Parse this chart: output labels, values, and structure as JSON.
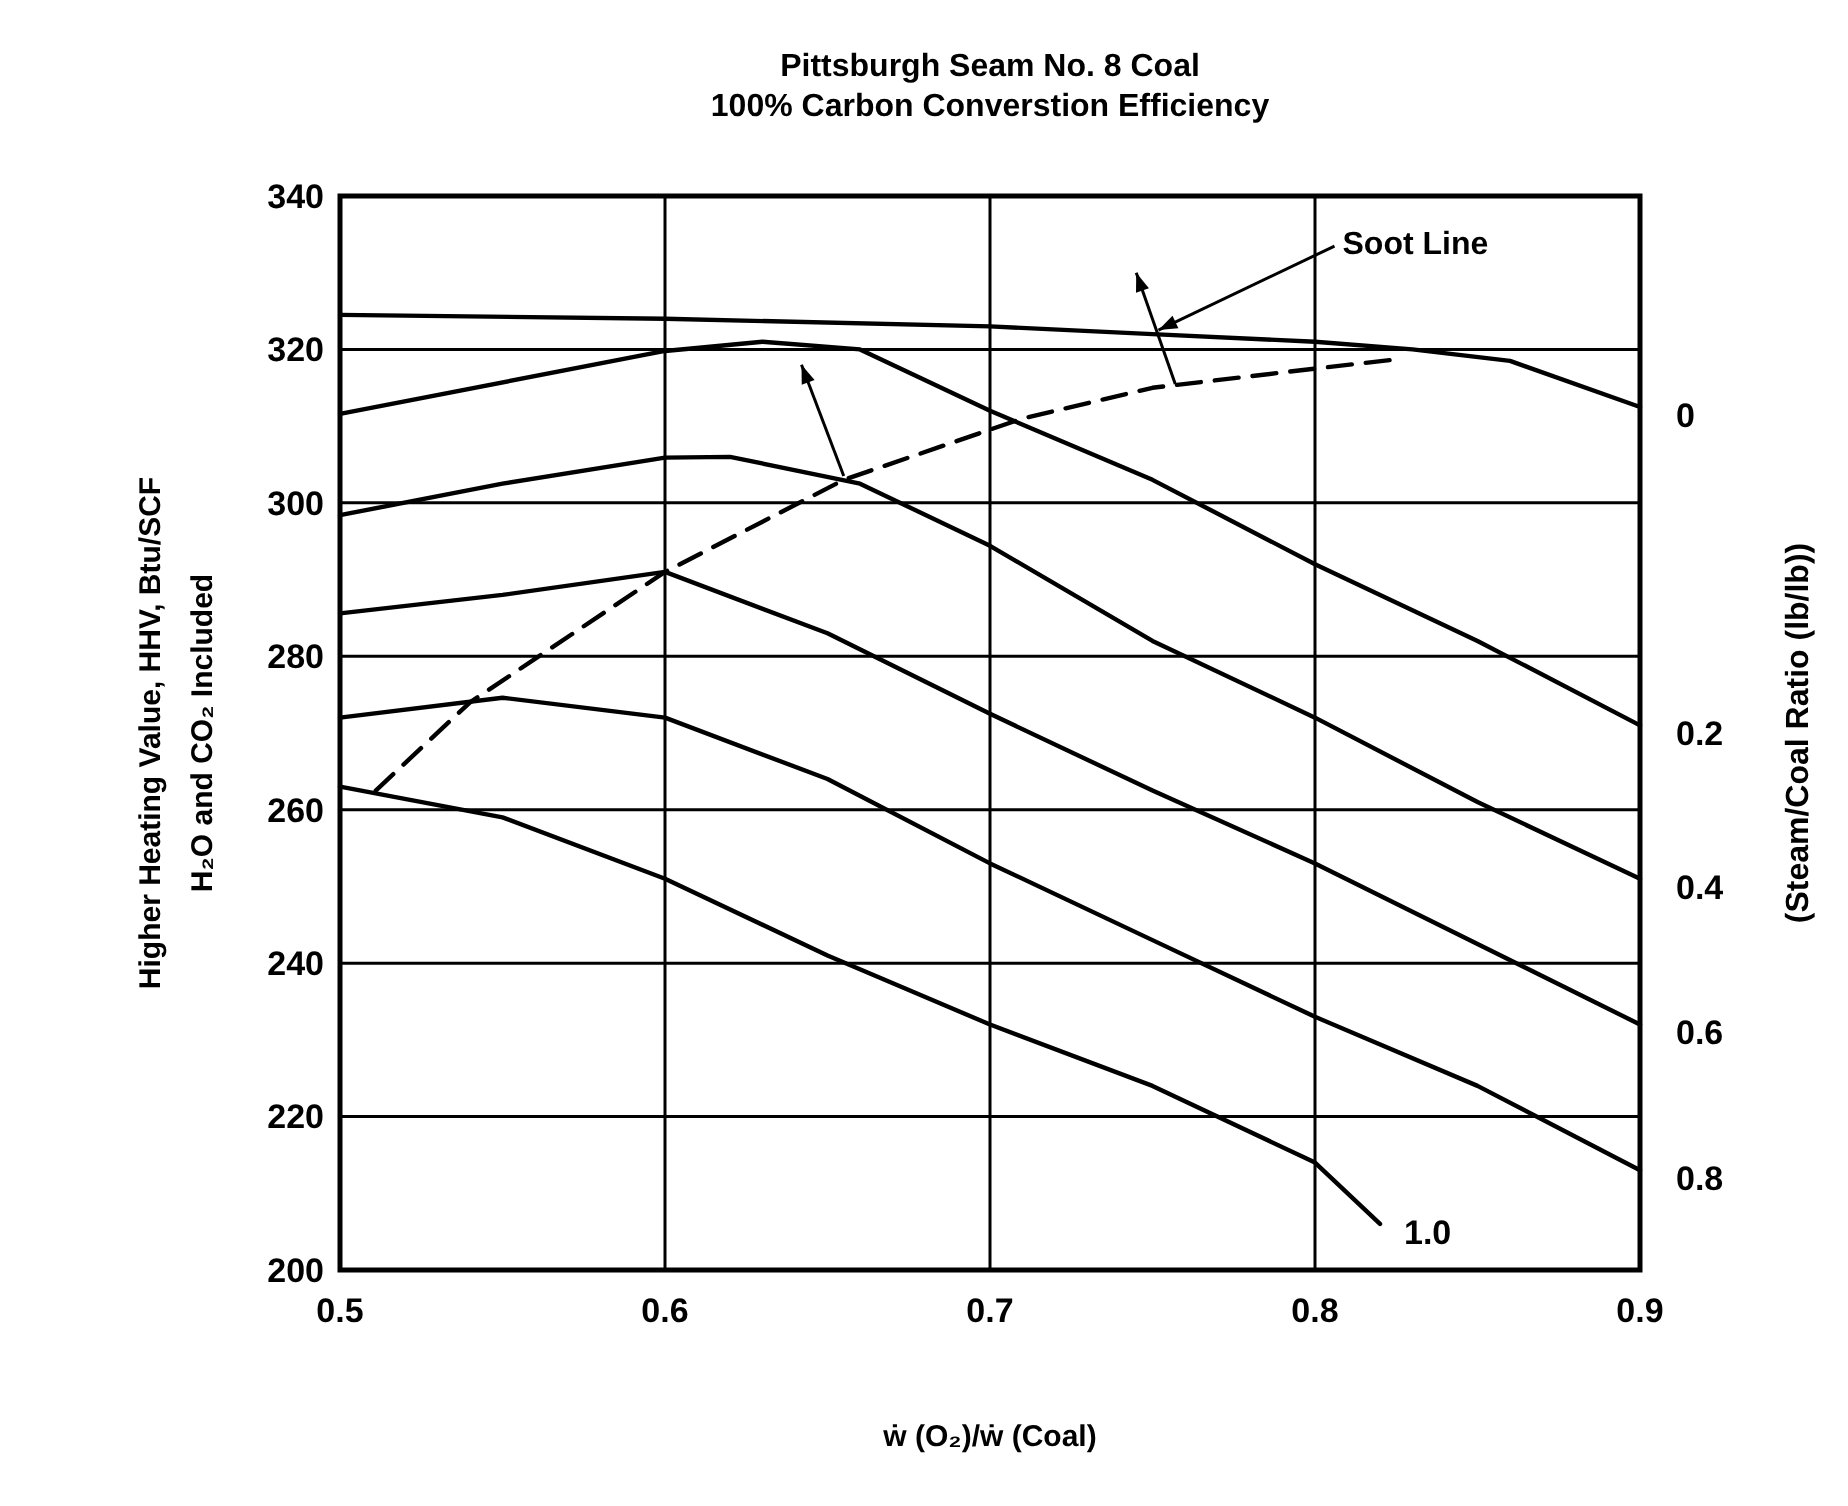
{
  "chart_data": {
    "type": "line",
    "title": "Pittsburgh Seam No. 8 Coal",
    "subtitle": "100% Carbon Converstion Efficiency",
    "xlabel": "ẇ (O₂)/ẇ (Coal)",
    "ylabel": "Higher Heating Value, HHV, Btu/SCF\nH₂O and CO₂ Included",
    "legend_title": "(Steam/Coal Ratio (lb/lb))",
    "xlim": [
      0.5,
      0.9
    ],
    "ylim": [
      200,
      340
    ],
    "xticks": [
      0.5,
      0.6,
      0.7,
      0.8,
      0.9
    ],
    "yticks": [
      200,
      220,
      240,
      260,
      280,
      300,
      320,
      340
    ],
    "grid": true,
    "line_style": "solid",
    "annotations": [
      {
        "text": "Soot Line",
        "x": 0.75,
        "y": 322
      }
    ],
    "series": [
      {
        "name": "0",
        "color": "#000000",
        "x": [
          0.5,
          0.6,
          0.7,
          0.75,
          0.8,
          0.83,
          0.86,
          0.9
        ],
        "values": [
          324.5,
          324,
          323,
          322,
          321,
          320,
          318.5,
          312.5
        ]
      },
      {
        "name": "0.2",
        "color": "#000000",
        "x": [
          0.5,
          0.6,
          0.63,
          0.66,
          0.7,
          0.75,
          0.8,
          0.85,
          0.9
        ],
        "values": [
          311.6,
          319.8,
          321,
          320,
          312,
          303,
          292,
          282,
          271
        ]
      },
      {
        "name": "0.4",
        "color": "#000000",
        "x": [
          0.5,
          0.55,
          0.6,
          0.62,
          0.66,
          0.7,
          0.75,
          0.8,
          0.85,
          0.9
        ],
        "values": [
          298.4,
          302.5,
          305.9,
          306,
          302.5,
          294.4,
          282,
          272,
          261,
          251
        ]
      },
      {
        "name": "0.6",
        "color": "#000000",
        "x": [
          0.5,
          0.55,
          0.6,
          0.65,
          0.7,
          0.75,
          0.8,
          0.85,
          0.9
        ],
        "values": [
          285.6,
          288,
          291,
          283,
          272.5,
          262.5,
          253,
          242.5,
          232
        ]
      },
      {
        "name": "0.8",
        "color": "#000000",
        "x": [
          0.5,
          0.55,
          0.6,
          0.65,
          0.7,
          0.75,
          0.8,
          0.85,
          0.9
        ],
        "values": [
          272,
          274.6,
          272,
          264,
          253,
          243,
          233,
          224,
          213
        ]
      },
      {
        "name": "1.0",
        "color": "#000000",
        "x": [
          0.5,
          0.55,
          0.6,
          0.65,
          0.7,
          0.75,
          0.8,
          0.82
        ],
        "values": [
          263,
          259,
          251,
          241,
          232,
          224,
          214,
          206
        ]
      },
      {
        "color": "#000000",
        "line_style": "dashed",
        "x": [
          0.511,
          0.54,
          0.6,
          0.655,
          0.71,
          0.75,
          0.8,
          0.825
        ],
        "values": [
          262.5,
          274,
          291,
          303,
          311,
          315,
          317.5,
          318.7
        ]
      }
    ]
  }
}
